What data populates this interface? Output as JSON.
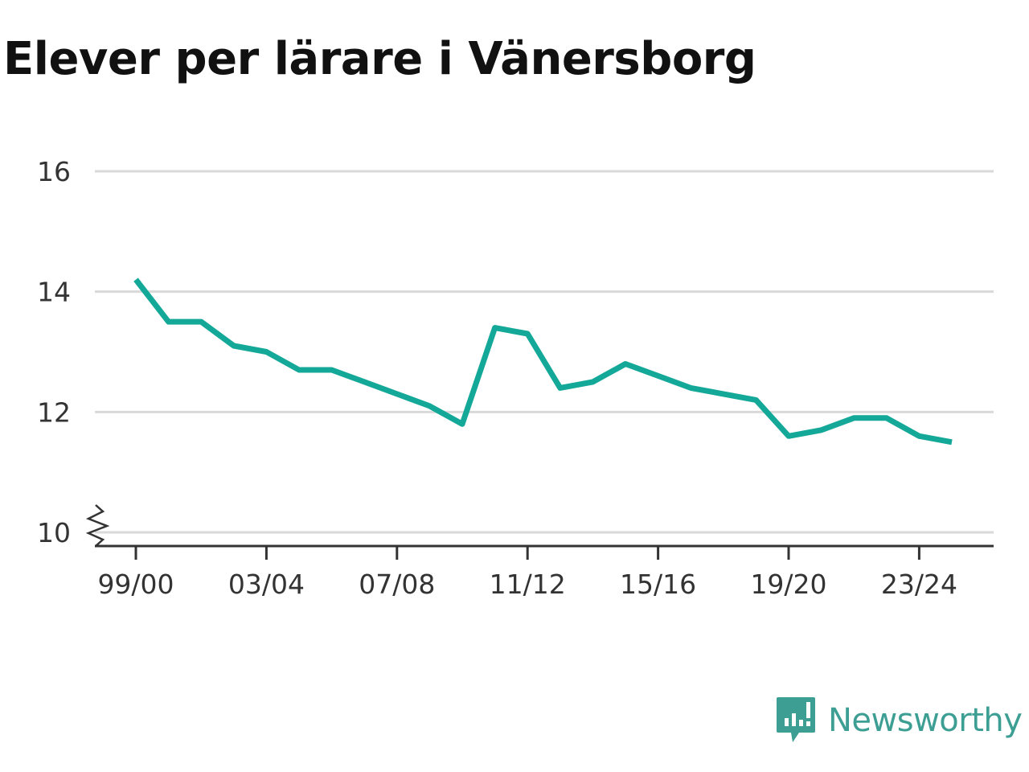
{
  "title": "Elever per lärare i Vänersborg",
  "brand": {
    "name": "Newsworthy",
    "icon": "newsworthy-logo-icon",
    "color": "#3d9e94"
  },
  "colors": {
    "line": "#14a898",
    "grid": "#d9d9d9",
    "axis": "#333333"
  },
  "chart_data": {
    "type": "line",
    "title": "Elever per lärare i Vänersborg",
    "xlabel": "",
    "ylabel": "",
    "ylim": [
      10,
      16
    ],
    "y_ticks": [
      "10",
      "12",
      "14",
      "16"
    ],
    "y_axis_break": true,
    "grid": true,
    "x_tick_labels": [
      "99/00",
      "03/04",
      "07/08",
      "11/12",
      "15/16",
      "19/20",
      "23/24"
    ],
    "x": [
      "99/00",
      "00/01",
      "01/02",
      "02/03",
      "03/04",
      "04/05",
      "05/06",
      "06/07",
      "07/08",
      "08/09",
      "09/10",
      "10/11",
      "11/12",
      "12/13",
      "13/14",
      "14/15",
      "15/16",
      "16/17",
      "17/18",
      "18/19",
      "19/20",
      "20/21",
      "21/22",
      "22/23",
      "23/24",
      "24/25"
    ],
    "series": [
      {
        "values": [
          14.2,
          13.5,
          13.5,
          13.1,
          13.0,
          12.7,
          12.7,
          12.5,
          12.3,
          12.1,
          11.8,
          13.4,
          13.3,
          12.4,
          12.5,
          12.8,
          12.6,
          12.4,
          12.3,
          12.2,
          11.6,
          11.7,
          11.9,
          11.9,
          11.6,
          11.5
        ]
      }
    ]
  }
}
